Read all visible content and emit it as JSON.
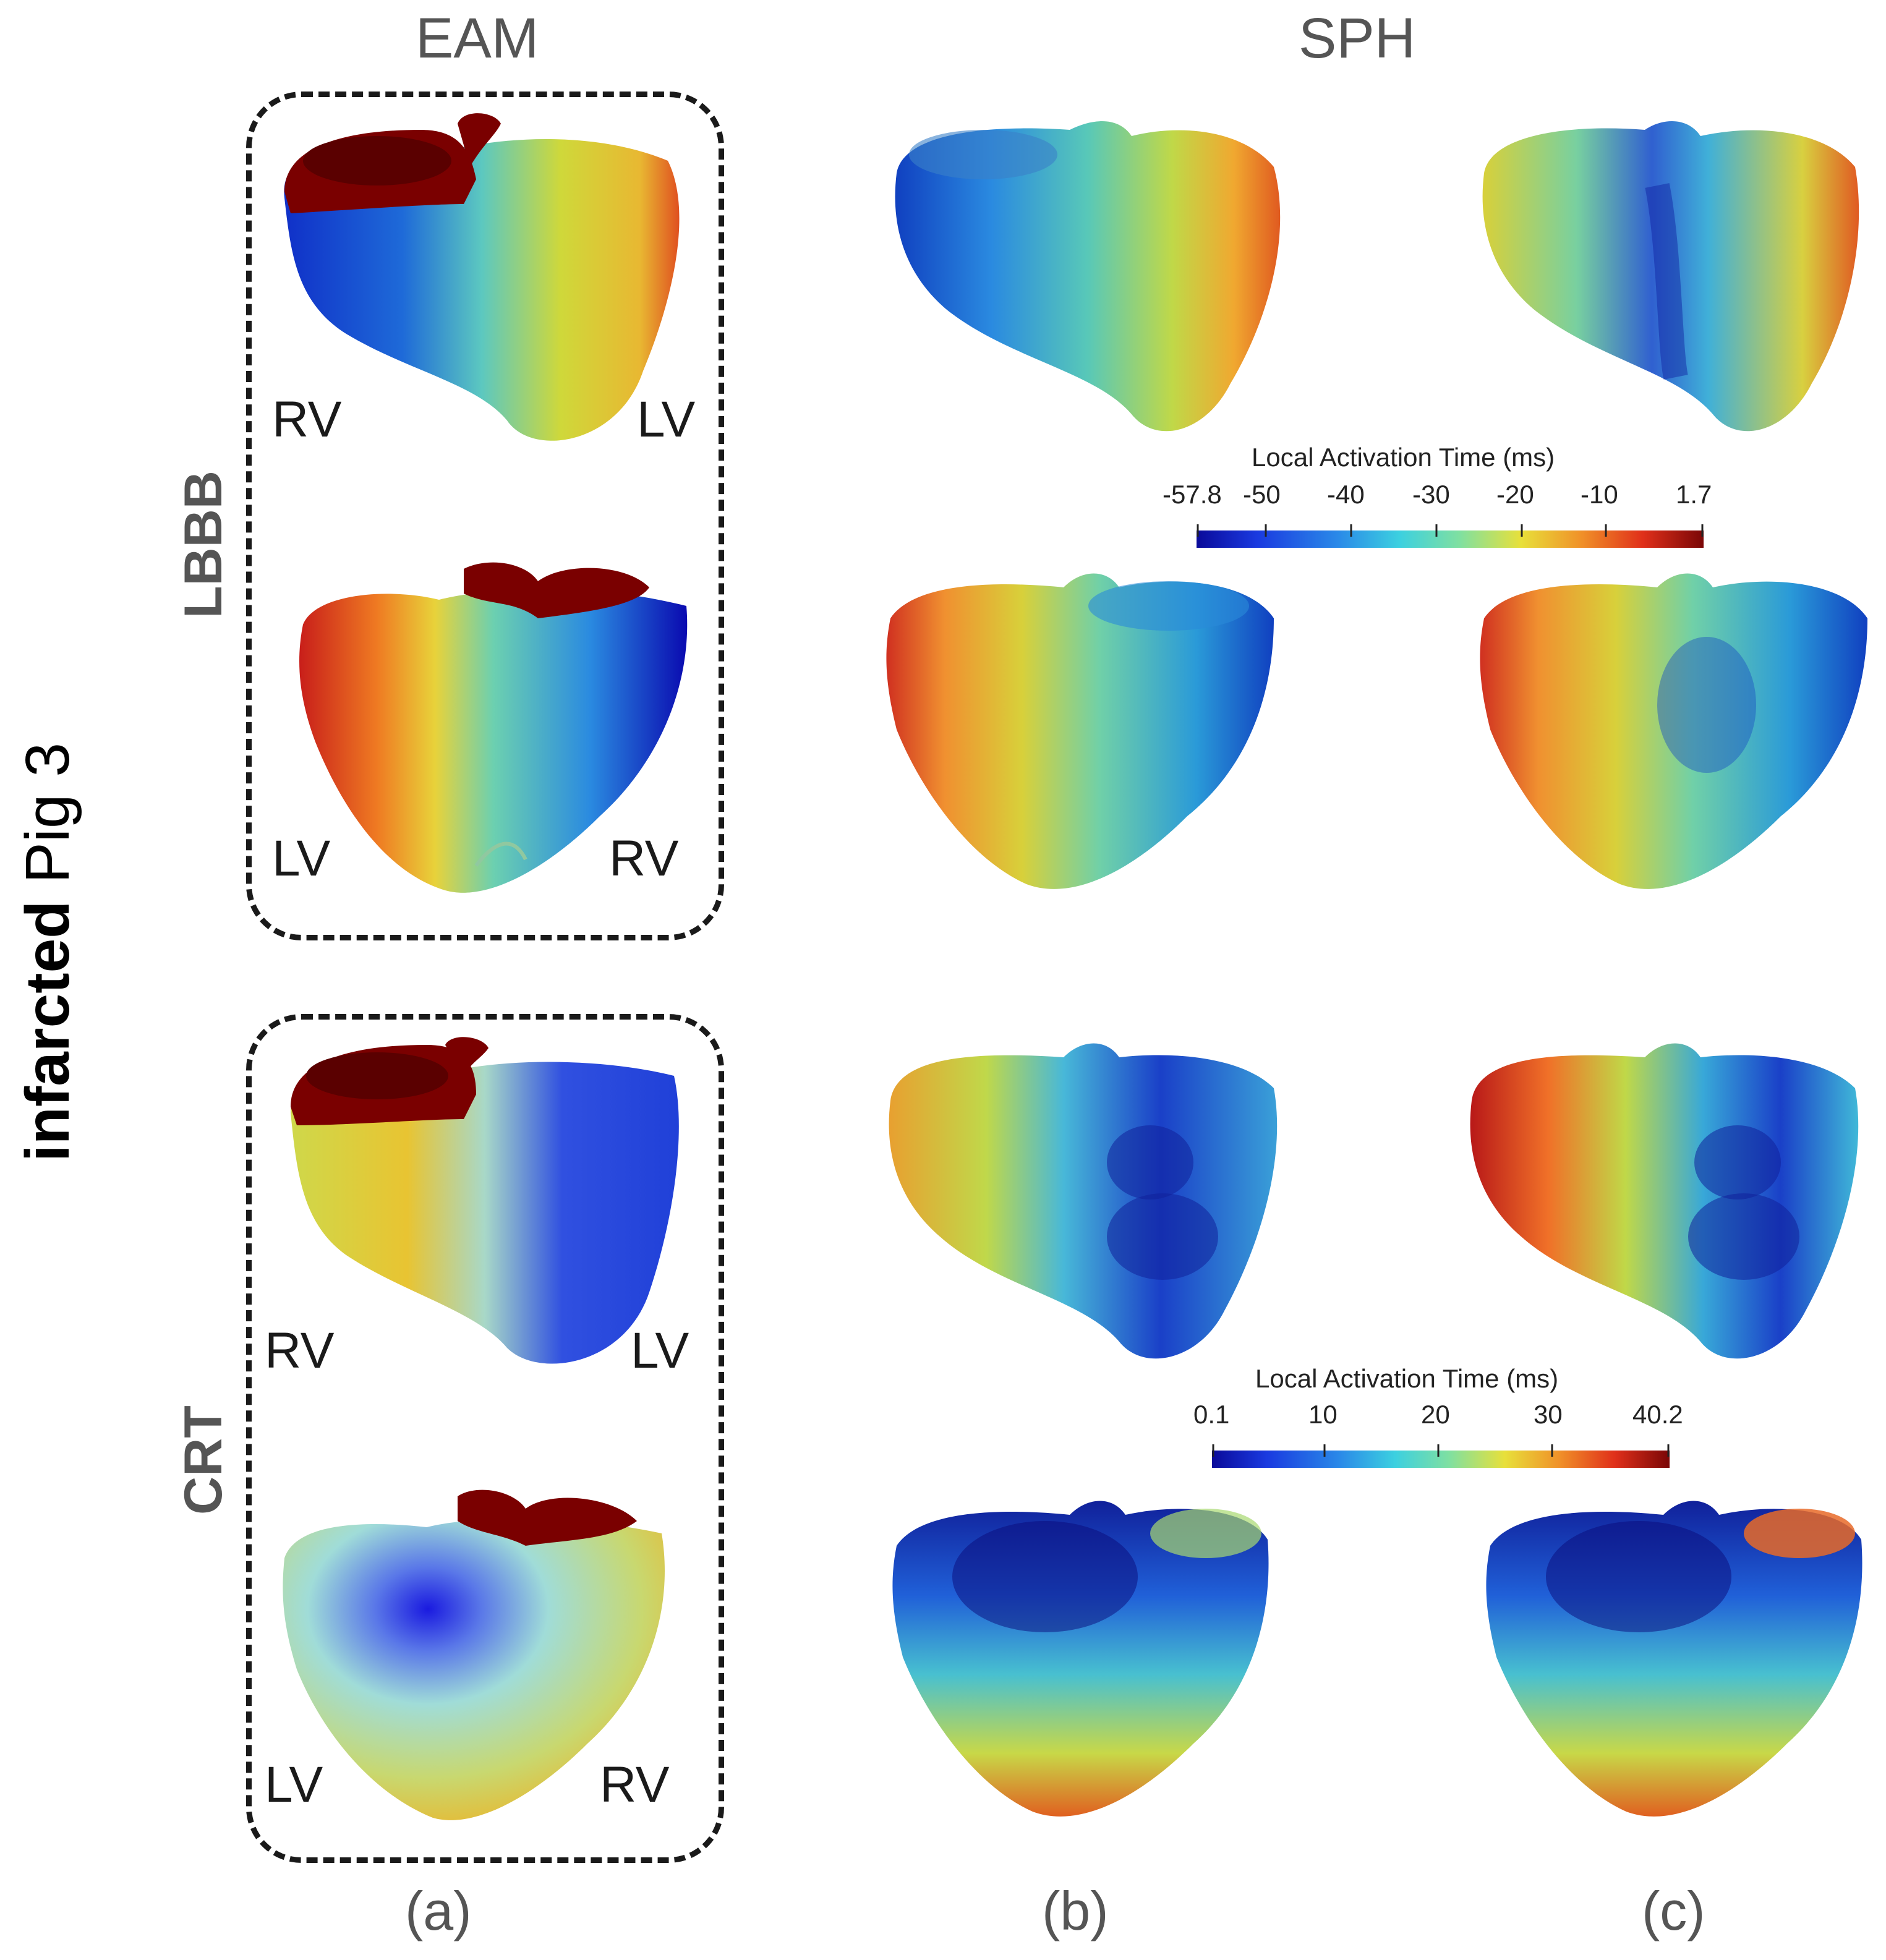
{
  "columns": {
    "eam": "EAM",
    "sph": "SPH"
  },
  "main_label": {
    "bold": "infarcted",
    "normal": "Pig 3"
  },
  "rows": {
    "lbbb": "LBBB",
    "crt": "CRT"
  },
  "chambers": {
    "lbbb_top": {
      "left": "RV",
      "right": "LV"
    },
    "lbbb_bottom": {
      "left": "LV",
      "right": "RV"
    },
    "crt_top": {
      "left": "RV",
      "right": "LV"
    },
    "crt_bottom": {
      "left": "LV",
      "right": "RV"
    }
  },
  "colorbar_lbbb": {
    "title": "Local Activation Time (ms)",
    "ticks": [
      "-57.8",
      "-50",
      "-40",
      "-30",
      "-20",
      "-10",
      "1.7"
    ]
  },
  "colorbar_crt": {
    "title": "Local Activation Time (ms)",
    "ticks": [
      "0.1",
      "10",
      "20",
      "30",
      "40.2"
    ]
  },
  "panel_labels": {
    "a": "(a)",
    "b": "(b)",
    "c": "(c)"
  },
  "colors": {
    "jet_dark_blue": "#0a0a9a",
    "jet_blue": "#1e5ad8",
    "jet_cyan": "#3cc8d8",
    "jet_green": "#7ad0a0",
    "jet_yellow": "#e8d23a",
    "jet_orange": "#f08a22",
    "jet_red": "#d0201a",
    "jet_dark_red": "#7a0606",
    "valve": "#7a0000"
  }
}
